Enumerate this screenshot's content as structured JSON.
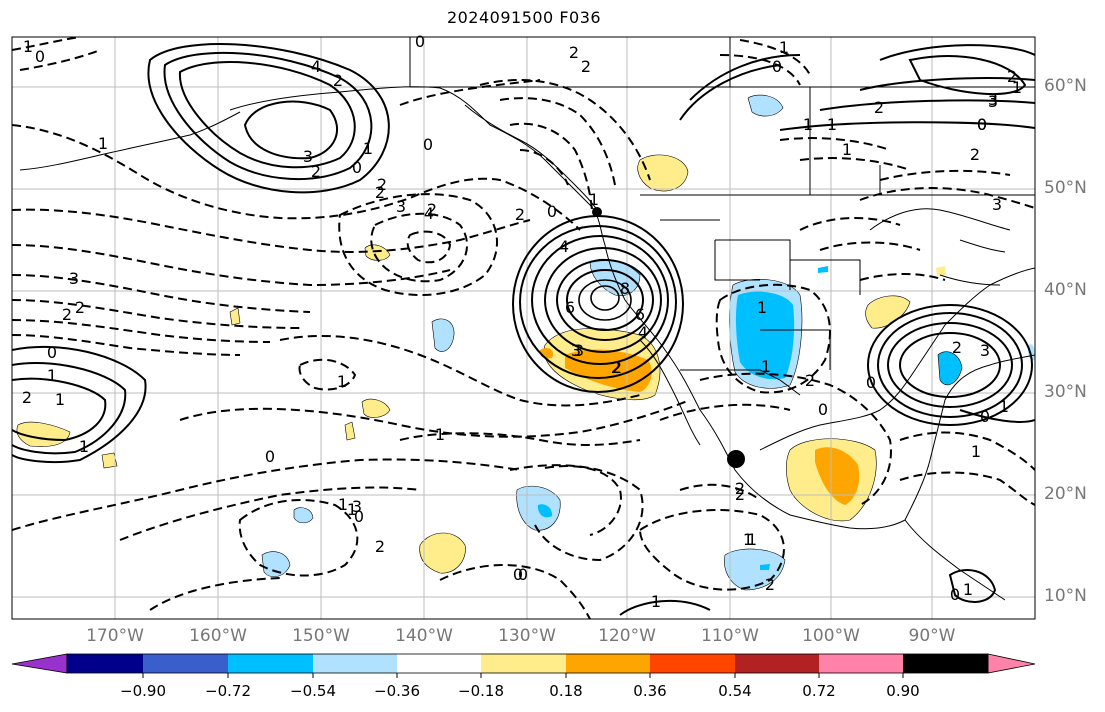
{
  "title": "2024091500 F036",
  "lat_labels": [
    "60°N",
    "50°N",
    "40°N",
    "30°N",
    "20°N",
    "10°N"
  ],
  "lon_labels": [
    "170°W",
    "160°W",
    "150°W",
    "140°W",
    "130°W",
    "120°W",
    "110°W",
    "100°W",
    "90°W"
  ],
  "colorbar": {
    "colors": [
      "#9932cc",
      "#00008b",
      "#3a5fcd",
      "#00bfff",
      "#b0e2ff",
      "#ffffff",
      "#ffec8b",
      "#ffa500",
      "#ff4500",
      "#b22222",
      "#ff82ab"
    ],
    "tick_labels": [
      "−0.90",
      "−0.72",
      "−0.54",
      "−0.36",
      "−0.18",
      "0.18",
      "0.36",
      "0.54",
      "0.72",
      "0.90"
    ]
  },
  "contour_labels": [
    "1",
    "0",
    "0",
    "2",
    "2",
    "1",
    "0",
    "4",
    "2",
    "3",
    "0",
    "3",
    "2",
    "0",
    "1",
    "2",
    "3",
    "0",
    "2",
    "1",
    "2",
    "4",
    "0",
    "2",
    "1",
    "3",
    "2",
    "3",
    "2",
    "0",
    "1",
    "1",
    "1",
    "2",
    "0",
    "1",
    "0",
    "1",
    "2",
    "0",
    "1",
    "1",
    "2",
    "0",
    "3",
    "1",
    "1",
    "1",
    "2",
    "3",
    "2",
    "4",
    "6",
    "8",
    "6",
    "4",
    "3",
    "2",
    "1",
    "2",
    "1",
    "2",
    "3",
    "0",
    "0",
    "1",
    "0",
    "1",
    "1",
    "2",
    "2",
    "0",
    "1",
    "3",
    "2",
    "1",
    "1",
    "0",
    "2",
    "1"
  ]
}
